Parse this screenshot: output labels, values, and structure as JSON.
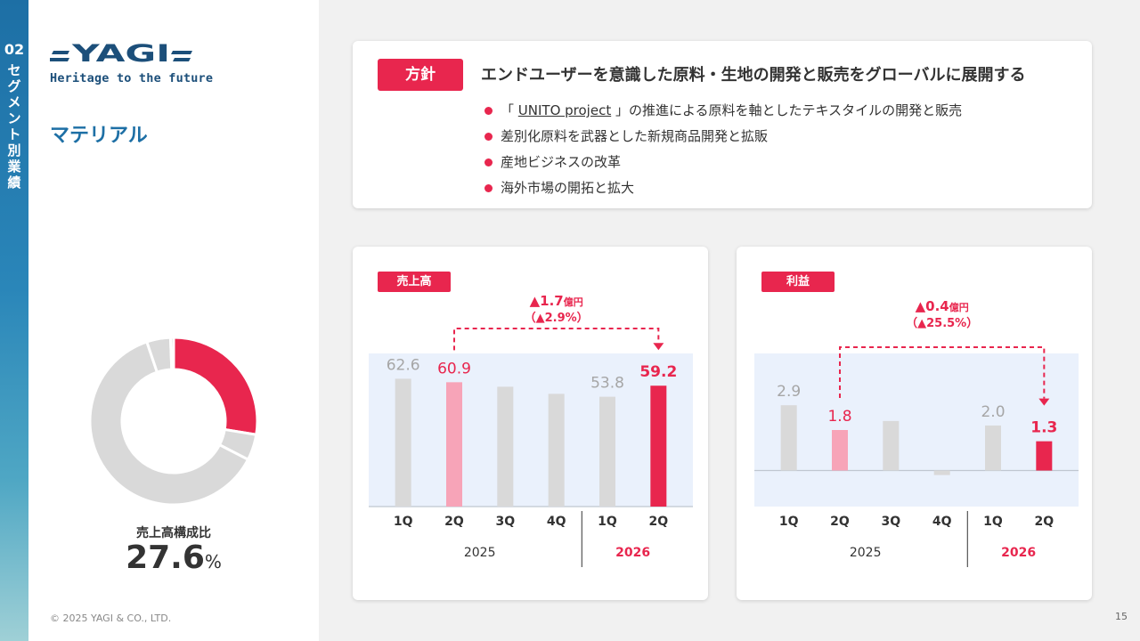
{
  "side": {
    "section_number": "02",
    "section_label": "セグメント別業績"
  },
  "brand": {
    "logo_text": "YAGI",
    "tagline": "Heritage to the future"
  },
  "segment": {
    "title": "マテリアル"
  },
  "composition": {
    "label": "売上高構成比",
    "value": "27.6",
    "unit": "%",
    "slices": [
      27.6,
      5.0,
      62.2,
      4.6,
      0.6
    ],
    "colors": [
      "#e8264e",
      "#d9d9d9",
      "#d9d9d9",
      "#d9d9d9",
      "#d9d9d9"
    ]
  },
  "policy": {
    "badge": "方針",
    "heading": "エンドユーザーを意識した原料・生地の開発と販売をグローバルに展開する",
    "items": [
      {
        "prefix": "「 ",
        "link": "UNITO project",
        "suffix": " 」の推進による原料を軸としたテキスタイルの開発と販売"
      },
      {
        "text": "差別化原料を武器とした新規商品開発と拡販"
      },
      {
        "text": "産地ビジネスの改革"
      },
      {
        "text": "海外市場の開拓と拡大"
      }
    ]
  },
  "chart_data": [
    {
      "type": "bar",
      "title": "売上高",
      "categories": [
        "1Q",
        "2Q",
        "3Q",
        "4Q",
        "1Q",
        "2Q"
      ],
      "groups": [
        {
          "label": "2025",
          "count": 4
        },
        {
          "label": "2026",
          "count": 2
        }
      ],
      "values": [
        62.6,
        60.9,
        58.7,
        55.2,
        53.8,
        59.2
      ],
      "data_labels": [
        "62.6",
        "60.9",
        "",
        "",
        "53.8",
        "59.2"
      ],
      "ylim": [
        0,
        75
      ],
      "bar_colors": [
        "#d9d9d9",
        "#f7a4b8",
        "#d9d9d9",
        "#d9d9d9",
        "#d9d9d9",
        "#e8264e"
      ],
      "label_colors": [
        "#a6a6a6",
        "#e8264e",
        "#a6a6a6",
        "#a6a6a6",
        "#a6a6a6",
        "#e8264e"
      ],
      "annotation": {
        "line1_value": "▲1.7",
        "line1_unit": "億円",
        "line2": "（▲2.9%）",
        "from_index": 1,
        "to_index": 5
      },
      "colors": {
        "accent": "#e8264e",
        "band": "#eaf1fc",
        "group_2026": "#e8264e",
        "group_2025": "#333333"
      }
    },
    {
      "type": "bar",
      "title": "利益",
      "categories": [
        "1Q",
        "2Q",
        "3Q",
        "4Q",
        "1Q",
        "2Q"
      ],
      "groups": [
        {
          "label": "2025",
          "count": 4
        },
        {
          "label": "2026",
          "count": 2
        }
      ],
      "values": [
        2.9,
        1.8,
        2.2,
        -0.2,
        2.0,
        1.3
      ],
      "data_labels": [
        "2.9",
        "1.8",
        "",
        "",
        "2.0",
        "1.3"
      ],
      "ylim": [
        -1.6,
        5.2
      ],
      "bar_colors": [
        "#d9d9d9",
        "#f7a4b8",
        "#d9d9d9",
        "#d9d9d9",
        "#d9d9d9",
        "#e8264e"
      ],
      "label_colors": [
        "#a6a6a6",
        "#e8264e",
        "#a6a6a6",
        "#a6a6a6",
        "#a6a6a6",
        "#e8264e"
      ],
      "annotation": {
        "line1_value": "▲0.4",
        "line1_unit": "億円",
        "line2": "（▲25.5%）",
        "from_index": 1,
        "to_index": 5
      },
      "colors": {
        "accent": "#e8264e",
        "band": "#eaf1fc",
        "group_2026": "#e8264e",
        "group_2025": "#333333"
      }
    }
  ],
  "footer": {
    "copyright": "© 2025 YAGI & CO., LTD.",
    "page": "15"
  }
}
